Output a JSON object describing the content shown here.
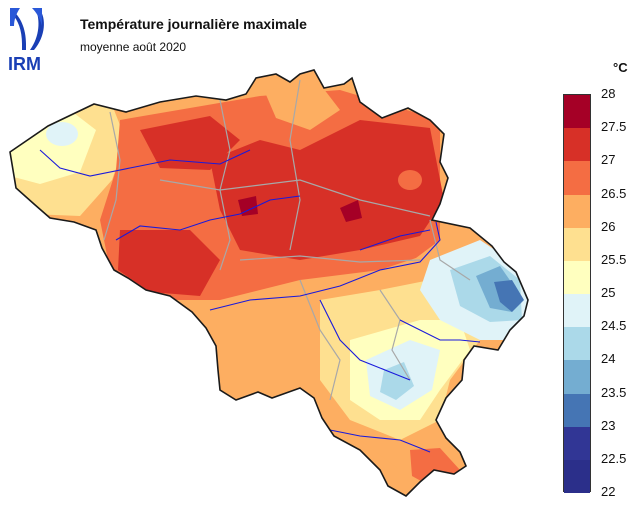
{
  "header": {
    "title": "Température journalière maximale",
    "subtitle": "moyenne août 2020",
    "logo_text": "IRM"
  },
  "legend": {
    "unit": "°C",
    "ticks": [
      "28",
      "27.5",
      "27",
      "26.5",
      "26",
      "25.5",
      "25",
      "24.5",
      "24",
      "23.5",
      "23",
      "22.5",
      "22"
    ],
    "colors": [
      "#a50026",
      "#d73027",
      "#f46d43",
      "#fdae61",
      "#fee090",
      "#ffffbf",
      "#e0f3f8",
      "#abd9e9",
      "#74add1",
      "#4575b4",
      "#313695",
      "#2b2f8a"
    ]
  },
  "map": {
    "region": "Belgique",
    "colors": {
      "border": "#1a1a1a",
      "rivers": "#1a1adb",
      "provinces": "#a8a8a8"
    }
  }
}
